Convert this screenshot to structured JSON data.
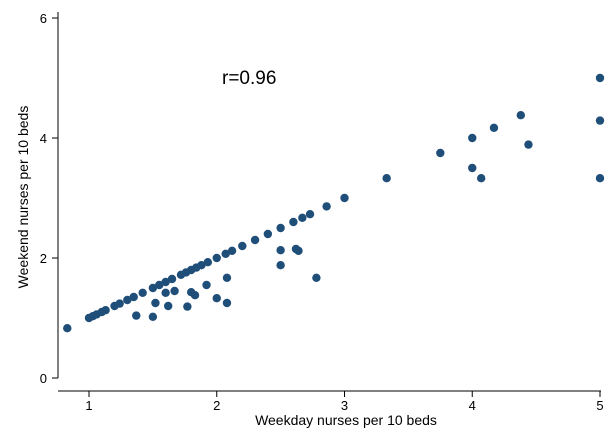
{
  "chart_data": {
    "type": "scatter",
    "xlabel": "Weekday nurses per 10 beds",
    "ylabel": "Weekend nurses per 10 beds",
    "annotation": "r=0.96",
    "xlim": [
      0.82,
      5.0
    ],
    "ylim": [
      0,
      6
    ],
    "xticks": [
      1,
      2,
      3,
      4,
      5
    ],
    "yticks": [
      0,
      2,
      4,
      6
    ],
    "grid": false,
    "marker_color": "#1f4e79",
    "series": [
      {
        "x": [
          0.83,
          1.0,
          1.03,
          1.06,
          1.1,
          1.13,
          1.2,
          1.24,
          1.3,
          1.35,
          1.42,
          1.5,
          1.55,
          1.6,
          1.65,
          1.72,
          1.76,
          1.8,
          1.84,
          1.88,
          1.93,
          2.0,
          2.07,
          2.12,
          2.2,
          2.3,
          2.4,
          2.5,
          2.6,
          2.67,
          2.73,
          2.86,
          3.0,
          3.33,
          3.75,
          4.0,
          4.17,
          4.38,
          5.0,
          5.0,
          1.37,
          1.5,
          1.52,
          1.6,
          1.62,
          1.67,
          1.77,
          1.8,
          1.83,
          1.92,
          2.0,
          2.08,
          2.08,
          2.5,
          2.5,
          2.62,
          2.64,
          2.78,
          4.0,
          4.07,
          4.44,
          5.0
        ],
        "y": [
          0.83,
          1.0,
          1.03,
          1.06,
          1.1,
          1.13,
          1.2,
          1.24,
          1.3,
          1.35,
          1.42,
          1.5,
          1.55,
          1.6,
          1.65,
          1.72,
          1.76,
          1.8,
          1.84,
          1.88,
          1.93,
          2.0,
          2.07,
          2.12,
          2.2,
          2.3,
          2.4,
          2.5,
          2.6,
          2.67,
          2.73,
          2.86,
          3.0,
          3.33,
          3.75,
          4.0,
          4.17,
          4.38,
          5.0,
          4.29,
          1.04,
          1.02,
          1.25,
          1.42,
          1.2,
          1.45,
          1.19,
          1.43,
          1.38,
          1.55,
          1.33,
          1.67,
          1.25,
          2.13,
          1.88,
          2.15,
          2.12,
          1.67,
          3.5,
          3.33,
          3.89,
          3.33
        ]
      }
    ]
  }
}
